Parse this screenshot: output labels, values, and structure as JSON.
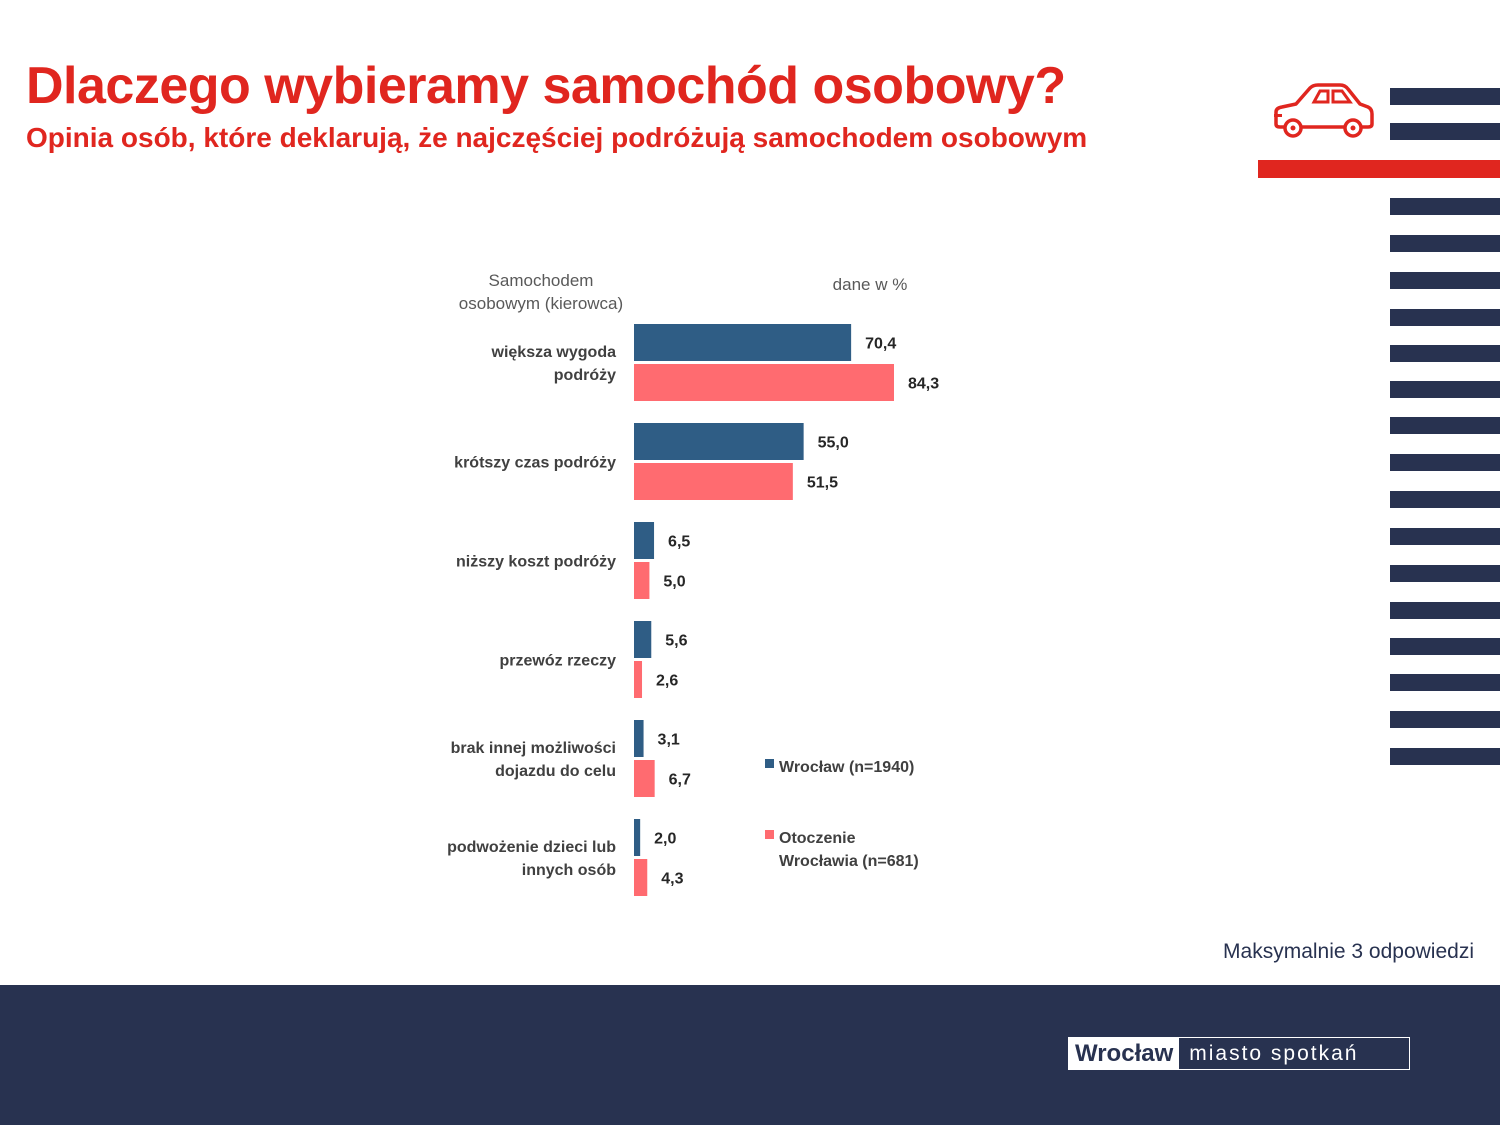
{
  "header": {
    "title": "Dlaczego wybieramy samochód osobowy?",
    "subtitle": "Opinia osób, które deklarują, że najczęściej podróżują samochodem osobowym"
  },
  "decor": {
    "icon": "car-icon"
  },
  "note": "Maksymalnie 3 odpowiedzi",
  "footer": {
    "logo_left": "Wrocław",
    "logo_right": "miasto spotkań"
  },
  "colors": {
    "accent_red": "#e0261f",
    "navy": "#283250",
    "series_blue": "#2f5d85",
    "series_pink": "#ff6b70"
  },
  "chart_data": {
    "type": "bar",
    "orientation": "horizontal",
    "category_header": [
      "Samochodem",
      "osobowym (kierowca)"
    ],
    "unit_note": "dane w %",
    "categories": [
      [
        "większa wygoda",
        "podróży"
      ],
      [
        "krótszy czas podróży"
      ],
      [
        "niższy koszt podróży"
      ],
      [
        "przewóz rzeczy"
      ],
      [
        "brak innej możliwości",
        "dojazdu do celu"
      ],
      [
        "podwożenie dzieci lub",
        "innych osób"
      ]
    ],
    "series": [
      {
        "name": [
          "Wrocław (n=1940)"
        ],
        "color": "#2f5d85",
        "values": [
          70.4,
          55.0,
          6.5,
          5.6,
          3.1,
          2.0
        ],
        "labels": [
          "70,4",
          "55,0",
          "6,5",
          "5,6",
          "3,1",
          "2,0"
        ]
      },
      {
        "name": [
          "Otoczenie",
          "Wrocławia (n=681)"
        ],
        "color": "#ff6b70",
        "values": [
          84.3,
          51.5,
          5.0,
          2.6,
          6.7,
          4.3
        ],
        "labels": [
          "84,3",
          "51,5",
          "5,0",
          "2,6",
          "6,7",
          "4,3"
        ]
      }
    ],
    "xlim": [
      0,
      100
    ],
    "legend": "right",
    "grid": false
  }
}
